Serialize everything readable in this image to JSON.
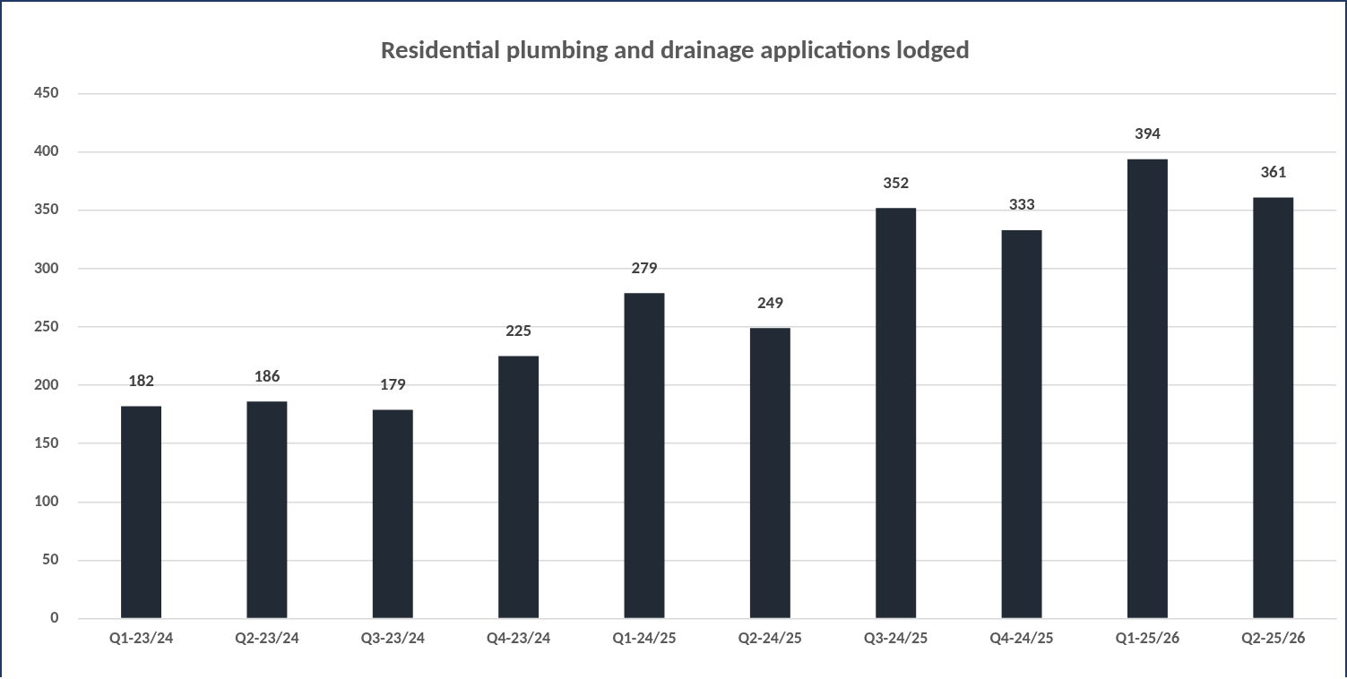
{
  "chart_data": {
    "type": "bar",
    "title": "Residential plumbing and drainage applications lodged",
    "categories": [
      "Q1-23/24",
      "Q2-23/24",
      "Q3-23/24",
      "Q4-23/24",
      "Q1-24/25",
      "Q2-24/25",
      "Q3-24/25",
      "Q4-24/25",
      "Q1-25/26",
      "Q2-25/26"
    ],
    "values": [
      182,
      186,
      179,
      225,
      279,
      249,
      352,
      333,
      394,
      361
    ],
    "color": "#222a35",
    "ylim": [
      0,
      450
    ],
    "yticks": [
      0,
      50,
      100,
      150,
      200,
      250,
      300,
      350,
      400,
      450
    ],
    "grid": "y",
    "data_labels": true
  }
}
